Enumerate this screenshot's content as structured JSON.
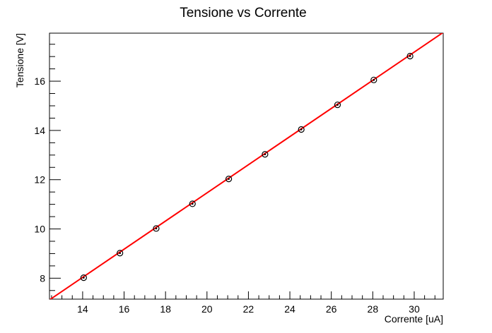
{
  "chart_data": {
    "type": "scatter",
    "title": "Tensione vs Corrente",
    "xlabel": "Corrente [uA]",
    "ylabel": "Tensione [V]",
    "xlim": [
      12.4,
      31.4
    ],
    "ylim": [
      7.15,
      17.95
    ],
    "x_ticks": [
      14,
      16,
      18,
      20,
      22,
      24,
      26,
      28,
      30
    ],
    "x_tick_labels": [
      "14",
      "16",
      "18",
      "20",
      "22",
      "24",
      "26",
      "28",
      "30"
    ],
    "y_ticks": [
      8,
      10,
      12,
      14,
      16
    ],
    "y_tick_labels": [
      "8",
      "10",
      "12",
      "14",
      "16"
    ],
    "x_minor_step": 0.5,
    "y_minor_step": 0.5,
    "grid": false,
    "marker_color": "#000000",
    "fit_color": "#ff0000",
    "series": [
      {
        "x": [
          14.05,
          15.8,
          17.55,
          19.3,
          21.05,
          22.8,
          24.55,
          26.3,
          28.05,
          29.8
        ],
        "y": [
          8.02,
          9.02,
          10.02,
          11.02,
          12.03,
          13.03,
          14.04,
          15.04,
          16.05,
          17.02
        ]
      }
    ],
    "fit_line": {
      "x": [
        12.4,
        31.4
      ],
      "y": [
        7.12,
        17.98
      ]
    }
  }
}
